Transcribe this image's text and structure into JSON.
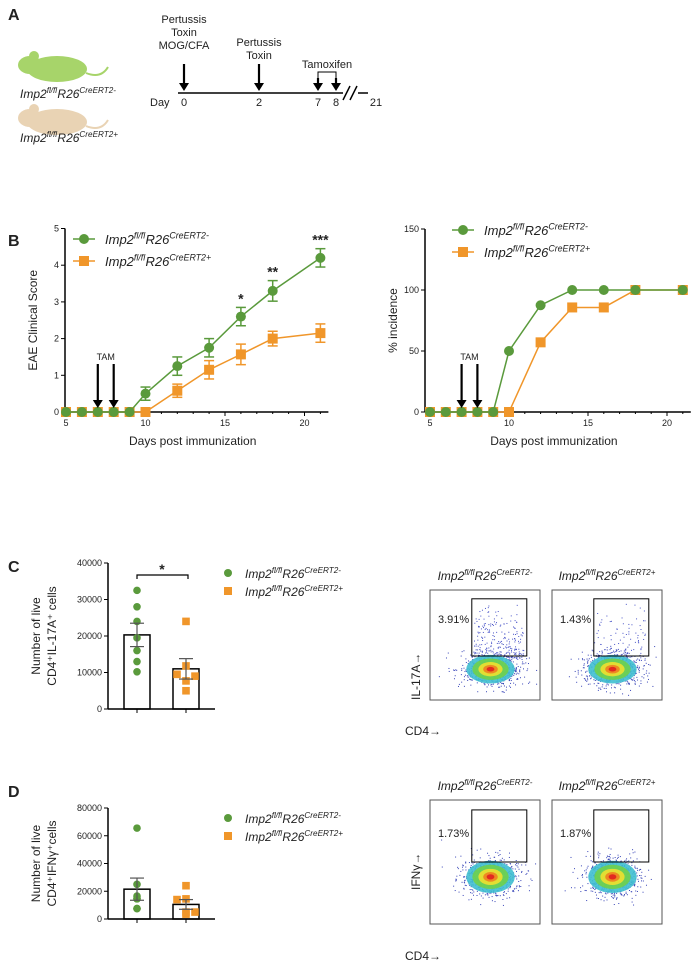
{
  "panels": {
    "a": "A",
    "b": "B",
    "c": "C",
    "d": "D"
  },
  "genotypes": {
    "neg": {
      "base": "Imp2",
      "sup1": "fl/fl",
      "mid": "R26",
      "sup2": "CreERT2-"
    },
    "pos": {
      "base": "Imp2",
      "sup1": "fl/fl",
      "mid": "R26",
      "sup2": "CreERT2+"
    }
  },
  "colors": {
    "neg": "#5a9a3c",
    "pos": "#f0962a",
    "neg_fill": "#4f9a3a"
  },
  "timeline": {
    "day_label": "Day",
    "ticks": [
      "0",
      "2",
      "7",
      "8",
      "21"
    ],
    "events": [
      {
        "lines": [
          "Pertussis",
          "Toxin",
          "MOG/CFA"
        ]
      },
      {
        "lines": [
          "Pertussis",
          "Toxin"
        ]
      },
      {
        "lines": [
          "Tamoxifen"
        ]
      }
    ]
  },
  "tam_label": "TAM",
  "chart_data": [
    {
      "type": "line",
      "xlabel": "Days post immunization",
      "ylabel": "EAE Clinical Score",
      "xlim": [
        5,
        21
      ],
      "ylim": [
        0,
        5
      ],
      "xticks": [
        5,
        10,
        15,
        20
      ],
      "yticks": [
        0,
        1,
        2,
        3,
        4,
        5
      ],
      "legend": "top-left",
      "x": [
        5,
        6,
        7,
        8,
        9,
        10,
        12,
        14,
        16,
        18,
        21
      ],
      "series": [
        {
          "key": "neg",
          "marker": "circle",
          "values": [
            0,
            0,
            0,
            0,
            0,
            0.5,
            1.25,
            1.75,
            2.6,
            3.3,
            4.2
          ],
          "err": [
            0,
            0,
            0,
            0,
            0,
            0.18,
            0.25,
            0.25,
            0.25,
            0.28,
            0.25
          ]
        },
        {
          "key": "pos",
          "marker": "square",
          "values": [
            0,
            0,
            0,
            0,
            0,
            0,
            0.58,
            1.15,
            1.57,
            2.0,
            2.15
          ],
          "err": [
            0,
            0,
            0,
            0,
            0,
            0,
            0.18,
            0.25,
            0.28,
            0.2,
            0.25
          ]
        }
      ],
      "annotations": [
        {
          "x": 16,
          "text": "*"
        },
        {
          "x": 18,
          "text": "**"
        },
        {
          "x": 21,
          "text": "***"
        }
      ],
      "arrows_x": [
        7,
        8
      ]
    },
    {
      "type": "line",
      "xlabel": "Days post immunization",
      "ylabel": "% incidence",
      "xlim": [
        5,
        21
      ],
      "ylim": [
        0,
        150
      ],
      "xticks": [
        5,
        10,
        15,
        20
      ],
      "yticks": [
        0,
        50,
        100,
        150
      ],
      "legend": "top-left",
      "x": [
        5,
        6,
        7,
        8,
        9,
        10,
        12,
        14,
        16,
        18,
        21
      ],
      "series": [
        {
          "key": "neg",
          "marker": "circle",
          "values": [
            0,
            0,
            0,
            0,
            0,
            50,
            87.5,
            100,
            100,
            100,
            100
          ]
        },
        {
          "key": "pos",
          "marker": "square",
          "values": [
            0,
            0,
            0,
            0,
            0,
            0,
            57.1,
            85.7,
            85.7,
            100,
            100
          ]
        }
      ],
      "arrows_x": [
        7,
        8
      ]
    },
    {
      "type": "bar",
      "ylabel": [
        "Number of  live",
        "CD4⁺IL-17A⁺ cells"
      ],
      "ylim": [
        0,
        40000
      ],
      "yticks": [
        0,
        10000,
        20000,
        30000,
        40000
      ],
      "legend": "right",
      "groups": [
        {
          "key": "neg",
          "mean": 20300,
          "sem": 3200,
          "points": [
            32500,
            28000,
            24000,
            19500,
            16000,
            13000,
            10200
          ]
        },
        {
          "key": "pos",
          "mean": 11000,
          "sem": 2800,
          "points": [
            24000,
            11800,
            9500,
            9000,
            7700,
            5000
          ]
        }
      ],
      "significance": "*"
    },
    {
      "type": "bar",
      "ylabel": [
        "Number of  live",
        "CD4⁺IFNγ⁺cells"
      ],
      "ylim": [
        0,
        80000
      ],
      "yticks": [
        0,
        20000,
        40000,
        60000,
        80000
      ],
      "legend": "right",
      "groups": [
        {
          "key": "neg",
          "mean": 21500,
          "sem": 8000,
          "points": [
            65500,
            25000,
            16500,
            14500,
            15000,
            7500,
            7500
          ]
        },
        {
          "key": "pos",
          "mean": 10500,
          "sem": 3500,
          "points": [
            24000,
            14500,
            14000,
            5000,
            5000,
            3500
          ]
        }
      ]
    }
  ],
  "flow": {
    "c": {
      "y_label": "IL-17A→",
      "x_label": "CD4→",
      "percents": [
        "3.91%",
        "1.43%"
      ]
    },
    "d": {
      "y_label": "IFNγ→",
      "x_label": "CD4→",
      "percents": [
        "1.73%",
        "1.87%"
      ]
    }
  }
}
